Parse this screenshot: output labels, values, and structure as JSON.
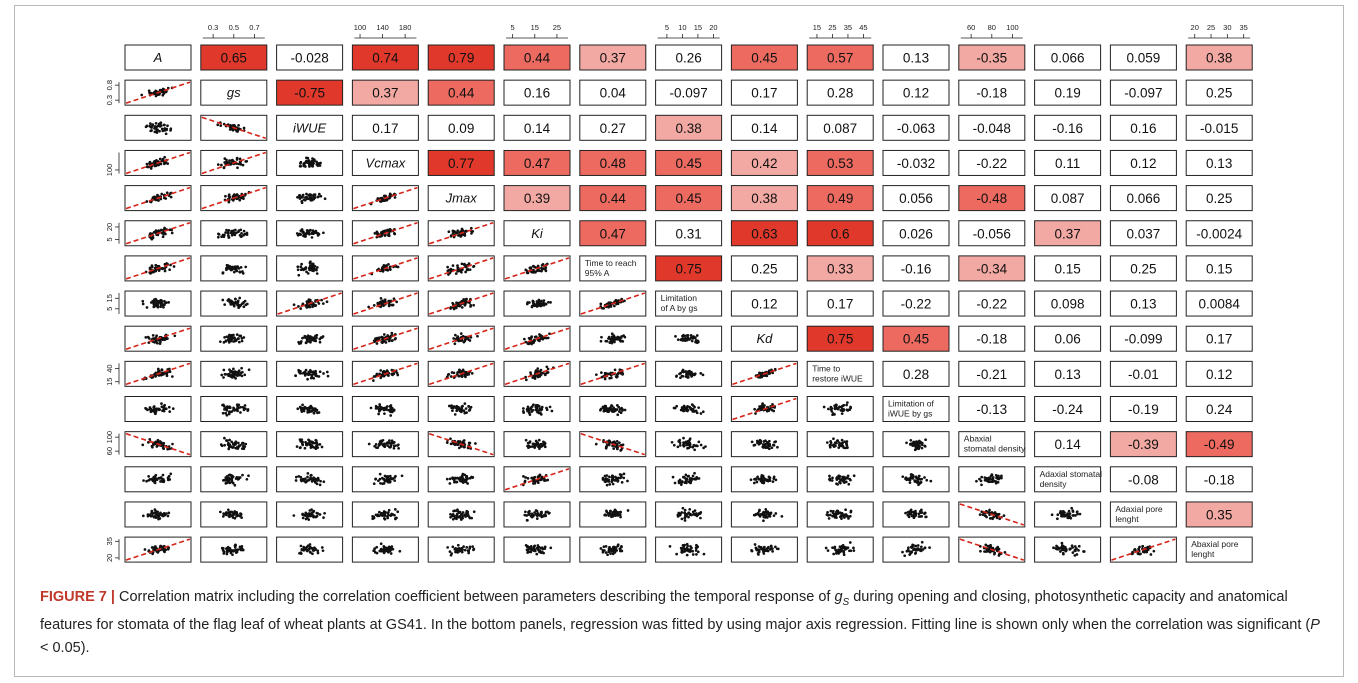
{
  "figure": {
    "label": "FIGURE 7 |",
    "caption_parts": [
      {
        "t": "Correlation matrix including the correlation coefficient between parameters describing the temporal response of ",
        "i": false
      },
      {
        "t": "g",
        "i": true
      },
      {
        "t": "S",
        "i": true,
        "sub": true
      },
      {
        "t": " during opening and closing, photosynthetic capacity and anatomical features for stomata of the flag leaf of wheat plants at GS41. In the bottom panels, regression was fitted by using major axis regression. Fitting line is shown only when the correlation was significant (",
        "i": false
      },
      {
        "t": "P",
        "i": true
      },
      {
        "t": " < 0.05).",
        "i": false
      }
    ]
  },
  "chart_data": {
    "type": "heatmap",
    "variables": [
      {
        "label": "A",
        "italic": true
      },
      {
        "label": "gs",
        "italic": true
      },
      {
        "label": "iWUE",
        "italic": true
      },
      {
        "label": "Vcmax",
        "italic": true
      },
      {
        "label": "Jmax",
        "italic": true
      },
      {
        "label": "Ki",
        "italic": true
      },
      {
        "label": "Time to reach 95% A",
        "lines": [
          "Time to reach",
          "95% A"
        ]
      },
      {
        "label": "Limitation of A by gs",
        "lines": [
          "Limitation",
          "of A by gs"
        ]
      },
      {
        "label": "Kd",
        "italic": true
      },
      {
        "label": "Time to restore iWUE",
        "lines": [
          "Time to",
          "restore iWUE"
        ]
      },
      {
        "label": "Limitation of iWUE by gs",
        "lines": [
          "Limitation of",
          "iWUE by gs"
        ]
      },
      {
        "label": "Abaxial stomatal density",
        "lines": [
          "Abaxial",
          "stomatal density"
        ]
      },
      {
        "label": "Adaxial stomatal density",
        "lines": [
          "Adaxial stomatal",
          "density"
        ]
      },
      {
        "label": "Adaxial pore lenght",
        "lines": [
          "Adaxial pore",
          "lenght"
        ]
      },
      {
        "label": "Abaxial pore lenght",
        "lines": [
          "Abaxial pore",
          "lenght"
        ]
      }
    ],
    "correlations": [
      [
        "A",
        "gs",
        "0.65"
      ],
      [
        "A",
        "iWUE",
        "-0.028"
      ],
      [
        "A",
        "Vcmax",
        "0.74"
      ],
      [
        "A",
        "Jmax",
        "0.79"
      ],
      [
        "A",
        "Ki",
        "0.44"
      ],
      [
        "A",
        "Time to reach 95% A",
        "0.37"
      ],
      [
        "A",
        "Limitation of A by gs",
        "0.26"
      ],
      [
        "A",
        "Kd",
        "0.45"
      ],
      [
        "A",
        "Time to restore iWUE",
        "0.57"
      ],
      [
        "A",
        "Limitation of iWUE by gs",
        "0.13"
      ],
      [
        "A",
        "Abaxial stomatal density",
        "-0.35"
      ],
      [
        "A",
        "Adaxial stomatal density",
        "0.066"
      ],
      [
        "A",
        "Adaxial pore lenght",
        "0.059"
      ],
      [
        "A",
        "Abaxial pore lenght",
        "0.38"
      ]
    ],
    "upper_rows": [
      [
        "0.65",
        "-0.028",
        "0.74",
        "0.79",
        "0.44",
        "0.37",
        "0.26",
        "0.45",
        "0.57",
        "0.13",
        "-0.35",
        "0.066",
        "0.059",
        "0.38"
      ],
      [
        "-0.75",
        "0.37",
        "0.44",
        "0.16",
        "0.04",
        "-0.097",
        "0.17",
        "0.28",
        "0.12",
        "-0.18",
        "0.19",
        "-0.097",
        "0.25"
      ],
      [
        "0.17",
        "0.09",
        "0.14",
        "0.27",
        "0.38",
        "0.14",
        "0.087",
        "-0.063",
        "-0.048",
        "-0.16",
        "0.16",
        "-0.015"
      ],
      [
        "0.77",
        "0.47",
        "0.48",
        "0.45",
        "0.42",
        "0.53",
        "-0.032",
        "-0.22",
        "0.11",
        "0.12",
        "0.13"
      ],
      [
        "0.39",
        "0.44",
        "0.45",
        "0.38",
        "0.49",
        "0.056",
        "-0.48",
        "0.087",
        "0.066",
        "0.25"
      ],
      [
        "0.47",
        "0.31",
        "0.63",
        "0.6",
        "0.026",
        "-0.056",
        "0.37",
        "0.037",
        "-0.0024"
      ],
      [
        "0.75",
        "0.25",
        "0.33",
        "-0.16",
        "-0.34",
        "0.15",
        "0.25",
        "0.15"
      ],
      [
        "0.12",
        "0.17",
        "-0.22",
        "-0.22",
        "0.098",
        "0.13",
        "0.0084"
      ],
      [
        "0.75",
        "0.45",
        "-0.18",
        "0.06",
        "-0.099",
        "0.17"
      ],
      [
        "0.28",
        "-0.21",
        "0.13",
        "-0.01",
        "0.12"
      ],
      [
        "-0.13",
        "-0.24",
        "-0.19",
        "0.24"
      ],
      [
        "0.14",
        "-0.39",
        "-0.49"
      ],
      [
        "-0.08",
        "-0.18"
      ],
      [
        "0.35"
      ]
    ],
    "top_axes": [
      {
        "col": 1,
        "ticks": [
          "0.3",
          "0.5",
          "0.7"
        ],
        "range": [
          0.2,
          0.8
        ]
      },
      {
        "col": 3,
        "ticks": [
          "100",
          "140",
          "180"
        ],
        "range": [
          90,
          200
        ]
      },
      {
        "col": 5,
        "ticks": [
          "5",
          "15",
          "25"
        ],
        "range": [
          2,
          30
        ]
      },
      {
        "col": 7,
        "ticks": [
          "5",
          "10",
          "15",
          "20"
        ],
        "range": [
          2,
          22
        ]
      },
      {
        "col": 9,
        "ticks": [
          "15",
          "25",
          "35",
          "45"
        ],
        "range": [
          10,
          50
        ]
      },
      {
        "col": 11,
        "ticks": [
          "60",
          "80",
          "100"
        ],
        "range": [
          50,
          110
        ]
      },
      {
        "col": 14,
        "ticks": [
          "20",
          "25",
          "30",
          "35"
        ],
        "range": [
          18,
          37
        ]
      }
    ],
    "left_axes": [
      {
        "row": 1,
        "ticks": [
          "0.3",
          "0.8"
        ],
        "range": [
          0.2,
          0.9
        ]
      },
      {
        "row": 3,
        "ticks": [
          "100"
        ],
        "range": [
          80,
          200
        ]
      },
      {
        "row": 5,
        "ticks": [
          "5",
          "20"
        ],
        "range": [
          0,
          25
        ]
      },
      {
        "row": 7,
        "ticks": [
          "5",
          "15"
        ],
        "range": [
          0,
          20
        ]
      },
      {
        "row": 9,
        "ticks": [
          "15",
          "40"
        ],
        "range": [
          10,
          50
        ]
      },
      {
        "row": 11,
        "ticks": [
          "60",
          "100"
        ],
        "range": [
          50,
          110
        ]
      },
      {
        "row": 14,
        "ticks": [
          "20",
          "35"
        ],
        "range": [
          18,
          37
        ]
      }
    ],
    "fit_line_shown": "only when P < 0.05",
    "colors": {
      "strong": "#e0392b",
      "medium": "#ec6a60",
      "weak": "#f3a9a3",
      "none": "#ffffff",
      "fit": "#d62418"
    }
  }
}
